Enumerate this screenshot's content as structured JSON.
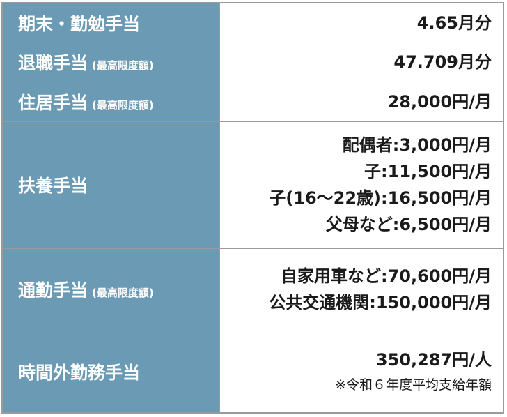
{
  "table": {
    "rows": [
      {
        "label": "期末・勤勉手当",
        "values": [
          "4.65月分"
        ]
      },
      {
        "label": "退職手当",
        "sub": "(最高限度額)",
        "values": [
          "47.709月分"
        ]
      },
      {
        "label": "住居手当",
        "sub": "(最高限度額)",
        "values": [
          "28,000円/月"
        ]
      },
      {
        "label": "扶養手当",
        "values": [
          "配偶者:3,000円/月",
          "子:11,500円/月",
          "子(16～22歳):16,500円/月",
          "父母など:6,500円/月"
        ]
      },
      {
        "label": "通勤手当",
        "sub": "(最高限度額)",
        "values": [
          "自家用車など:70,600円/月",
          "公共交通機関:150,000円/月"
        ]
      },
      {
        "label": "時間外勤務手当",
        "values": [
          "350,287円/人"
        ],
        "note": "※令和６年度平均支給年額"
      }
    ]
  }
}
